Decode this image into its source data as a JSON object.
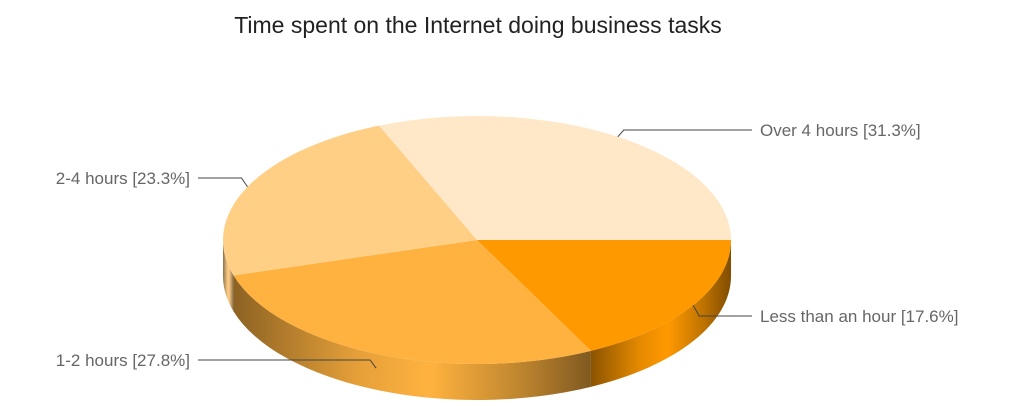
{
  "chart_data": {
    "type": "pie",
    "title": "Time spent on the Internet doing business tasks",
    "three_d": true,
    "slices": [
      {
        "label": "Less than an hour",
        "value": 17.6,
        "display": "Less than an hour [17.6%]",
        "color": "#ff9900"
      },
      {
        "label": "1-2 hours",
        "value": 27.8,
        "display": "1-2 hours [27.8%]",
        "color": "#ffb23f"
      },
      {
        "label": "2-4 hours",
        "value": 23.3,
        "display": "2-4 hours [23.3%]",
        "color": "#ffcf86"
      },
      {
        "label": "Over 4 hours",
        "value": 31.3,
        "display": "Over 4 hours [31.3%]",
        "color": "#ffe8c8"
      }
    ]
  }
}
